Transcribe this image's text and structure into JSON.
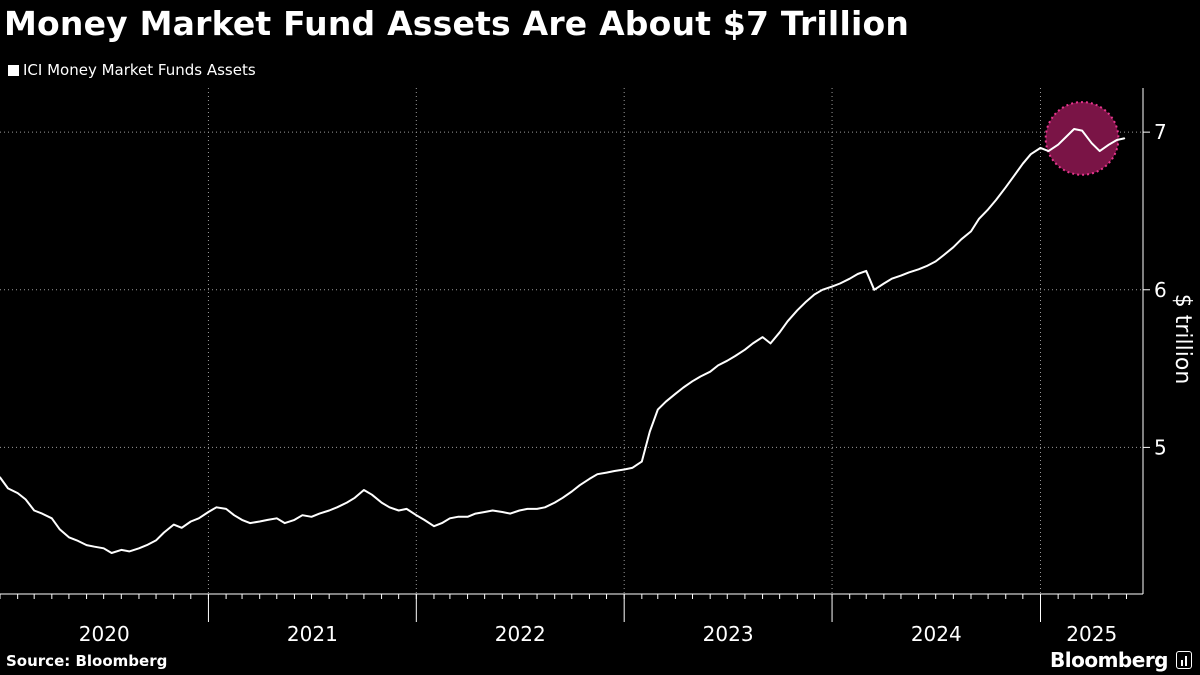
{
  "header": {
    "title": "Money Market Fund Assets Are About $7 Trillion"
  },
  "footer": {
    "source": "Source: Bloomberg",
    "brand": "Bloomberg"
  },
  "colors": {
    "background": "#000000",
    "line": "#ffffff",
    "highlight_fill": "#7a1446",
    "highlight_stroke": "#e8368f"
  },
  "chart_data": {
    "type": "line",
    "title": "Money Market Fund Assets Are About $7 Trillion",
    "ylabel": "$ trillion",
    "xlabel": "",
    "y_axis_side": "right",
    "ylim": [
      4.07,
      7.28
    ],
    "xlim": [
      "2020-01-01",
      "2025-06-30"
    ],
    "yticks": [
      5,
      6,
      7
    ],
    "ytick_labels": [
      "5",
      "6",
      "7"
    ],
    "x_year_labels": [
      "2020",
      "2021",
      "2022",
      "2023",
      "2024",
      "2025"
    ],
    "grid": true,
    "legend_placement": "top-left",
    "highlight": {
      "shape": "circle",
      "x": "2025-03-15",
      "y": 6.96,
      "radius_in_months": 2.1
    },
    "series": [
      {
        "name": "ICI Money Market Funds Assets",
        "color": "#ffffff",
        "x": [
          "2020-01-01",
          "2020-01-15",
          "2020-02-01",
          "2020-02-15",
          "2020-03-01",
          "2020-03-15",
          "2020-04-01",
          "2020-04-15",
          "2020-05-01",
          "2020-05-15",
          "2020-06-01",
          "2020-06-15",
          "2020-07-01",
          "2020-07-15",
          "2020-08-01",
          "2020-08-15",
          "2020-09-01",
          "2020-09-15",
          "2020-10-01",
          "2020-10-15",
          "2020-11-01",
          "2020-11-15",
          "2020-12-01",
          "2020-12-15",
          "2021-01-01",
          "2021-01-15",
          "2021-02-01",
          "2021-02-15",
          "2021-03-01",
          "2021-03-15",
          "2021-04-01",
          "2021-04-15",
          "2021-05-01",
          "2021-05-15",
          "2021-06-01",
          "2021-06-15",
          "2021-07-01",
          "2021-07-15",
          "2021-08-01",
          "2021-08-15",
          "2021-09-01",
          "2021-09-15",
          "2021-10-01",
          "2021-10-15",
          "2021-11-01",
          "2021-11-15",
          "2021-12-01",
          "2021-12-15",
          "2022-01-01",
          "2022-01-15",
          "2022-02-01",
          "2022-02-15",
          "2022-03-01",
          "2022-03-15",
          "2022-04-01",
          "2022-04-15",
          "2022-05-01",
          "2022-05-15",
          "2022-06-01",
          "2022-06-15",
          "2022-07-01",
          "2022-07-15",
          "2022-08-01",
          "2022-08-15",
          "2022-09-01",
          "2022-09-15",
          "2022-10-01",
          "2022-10-15",
          "2022-11-01",
          "2022-11-15",
          "2022-12-01",
          "2022-12-15",
          "2023-01-01",
          "2023-01-15",
          "2023-02-01",
          "2023-02-15",
          "2023-03-01",
          "2023-03-15",
          "2023-04-01",
          "2023-04-15",
          "2023-05-01",
          "2023-05-15",
          "2023-06-01",
          "2023-06-15",
          "2023-07-01",
          "2023-07-15",
          "2023-08-01",
          "2023-08-15",
          "2023-09-01",
          "2023-09-15",
          "2023-10-01",
          "2023-10-15",
          "2023-11-01",
          "2023-11-15",
          "2023-12-01",
          "2023-12-15",
          "2024-01-01",
          "2024-01-15",
          "2024-02-01",
          "2024-02-15",
          "2024-03-01",
          "2024-03-15",
          "2024-04-01",
          "2024-04-15",
          "2024-05-01",
          "2024-05-15",
          "2024-06-01",
          "2024-06-15",
          "2024-07-01",
          "2024-07-15",
          "2024-08-01",
          "2024-08-15",
          "2024-09-01",
          "2024-09-15",
          "2024-10-01",
          "2024-10-15",
          "2024-11-01",
          "2024-11-15",
          "2024-12-01",
          "2024-12-15",
          "2025-01-01",
          "2025-01-15",
          "2025-02-01",
          "2025-02-15",
          "2025-03-01",
          "2025-03-15",
          "2025-04-01",
          "2025-04-15",
          "2025-05-01",
          "2025-05-15",
          "2025-05-28"
        ],
        "values": [
          4.81,
          4.74,
          4.71,
          4.67,
          4.6,
          4.58,
          4.55,
          4.48,
          4.43,
          4.41,
          4.38,
          4.37,
          4.36,
          4.33,
          4.35,
          4.34,
          4.36,
          4.38,
          4.41,
          4.46,
          4.51,
          4.49,
          4.53,
          4.55,
          4.59,
          4.62,
          4.61,
          4.57,
          4.54,
          4.52,
          4.53,
          4.54,
          4.55,
          4.52,
          4.54,
          4.57,
          4.56,
          4.58,
          4.6,
          4.62,
          4.65,
          4.68,
          4.73,
          4.7,
          4.65,
          4.62,
          4.6,
          4.61,
          4.57,
          4.54,
          4.5,
          4.52,
          4.55,
          4.56,
          4.56,
          4.58,
          4.59,
          4.6,
          4.59,
          4.58,
          4.6,
          4.61,
          4.61,
          4.62,
          4.65,
          4.68,
          4.72,
          4.76,
          4.8,
          4.83,
          4.84,
          4.85,
          4.86,
          4.87,
          4.91,
          5.1,
          5.24,
          5.29,
          5.34,
          5.38,
          5.42,
          5.45,
          5.48,
          5.52,
          5.55,
          5.58,
          5.62,
          5.66,
          5.7,
          5.66,
          5.73,
          5.8,
          5.87,
          5.92,
          5.97,
          6.0,
          6.02,
          6.04,
          6.07,
          6.1,
          6.12,
          6.0,
          6.04,
          6.07,
          6.09,
          6.11,
          6.13,
          6.15,
          6.18,
          6.22,
          6.27,
          6.32,
          6.37,
          6.45,
          6.51,
          6.57,
          6.65,
          6.72,
          6.8,
          6.86,
          6.9,
          6.88,
          6.92,
          6.97,
          7.02,
          7.01,
          6.93,
          6.88,
          6.92,
          6.95,
          6.96
        ]
      }
    ]
  }
}
